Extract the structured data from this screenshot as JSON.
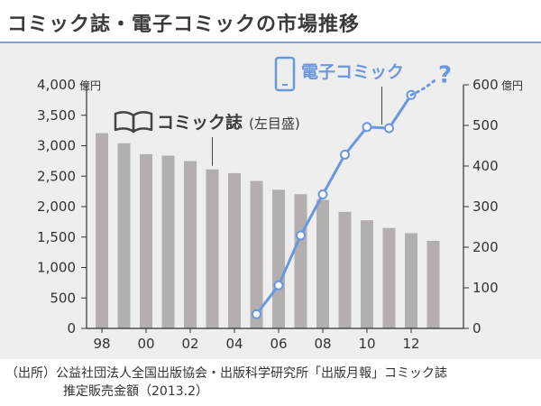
{
  "title": "コミック誌・電子コミックの市場推移",
  "source_line1": "（出所）公益社団法人全国出版協会・出版科学研究所「出版月報」コミック誌",
  "source_line2": "推定販売金額（2013.2）",
  "colors": {
    "bar": "#b3afaf",
    "line": "#6b97e0",
    "axis": "#333333",
    "title_rule": "#7aa0d8",
    "icon": "#444444"
  },
  "chart_data": {
    "type": "bar+line",
    "title": "コミック誌・電子コミックの市場推移",
    "x_tick_labels": [
      "98",
      "00",
      "02",
      "04",
      "06",
      "08",
      "10",
      "12"
    ],
    "years": [
      1998,
      1999,
      2000,
      2001,
      2002,
      2003,
      2004,
      2005,
      2006,
      2007,
      2008,
      2009,
      2010,
      2011,
      2012,
      2013
    ],
    "series": [
      {
        "name": "コミック誌 (左目盛)",
        "kind": "bar",
        "axis": "left",
        "x": [
          1998,
          1999,
          2000,
          2001,
          2002,
          2003,
          2004,
          2005,
          2006,
          2007,
          2008,
          2009,
          2010,
          2011,
          2012,
          2013
        ],
        "values": [
          3207,
          3041,
          2861,
          2837,
          2748,
          2611,
          2549,
          2421,
          2277,
          2204,
          2111,
          1913,
          1776,
          1650,
          1564,
          1438
        ]
      },
      {
        "name": "電子コミック",
        "kind": "line",
        "axis": "right",
        "x": [
          2005,
          2006,
          2007,
          2008,
          2009,
          2010,
          2011,
          2012
        ],
        "values": [
          35,
          106,
          229,
          330,
          428,
          496,
          493,
          575
        ],
        "projection_label": "?"
      }
    ],
    "left_axis": {
      "unit": "億円",
      "min": 0,
      "max": 4000,
      "ticks": [
        "0",
        "500",
        "1,000",
        "1,500",
        "2,000",
        "2,500",
        "3,000",
        "3,500",
        "4,000"
      ]
    },
    "right_axis": {
      "unit": "億円",
      "min": 0,
      "max": 600,
      "ticks": [
        "0",
        "100",
        "200",
        "300",
        "400",
        "500",
        "600"
      ]
    },
    "legend": {
      "bar_label": "コミック誌",
      "bar_label_note": "(左目盛)",
      "line_label": "電子コミック"
    }
  }
}
